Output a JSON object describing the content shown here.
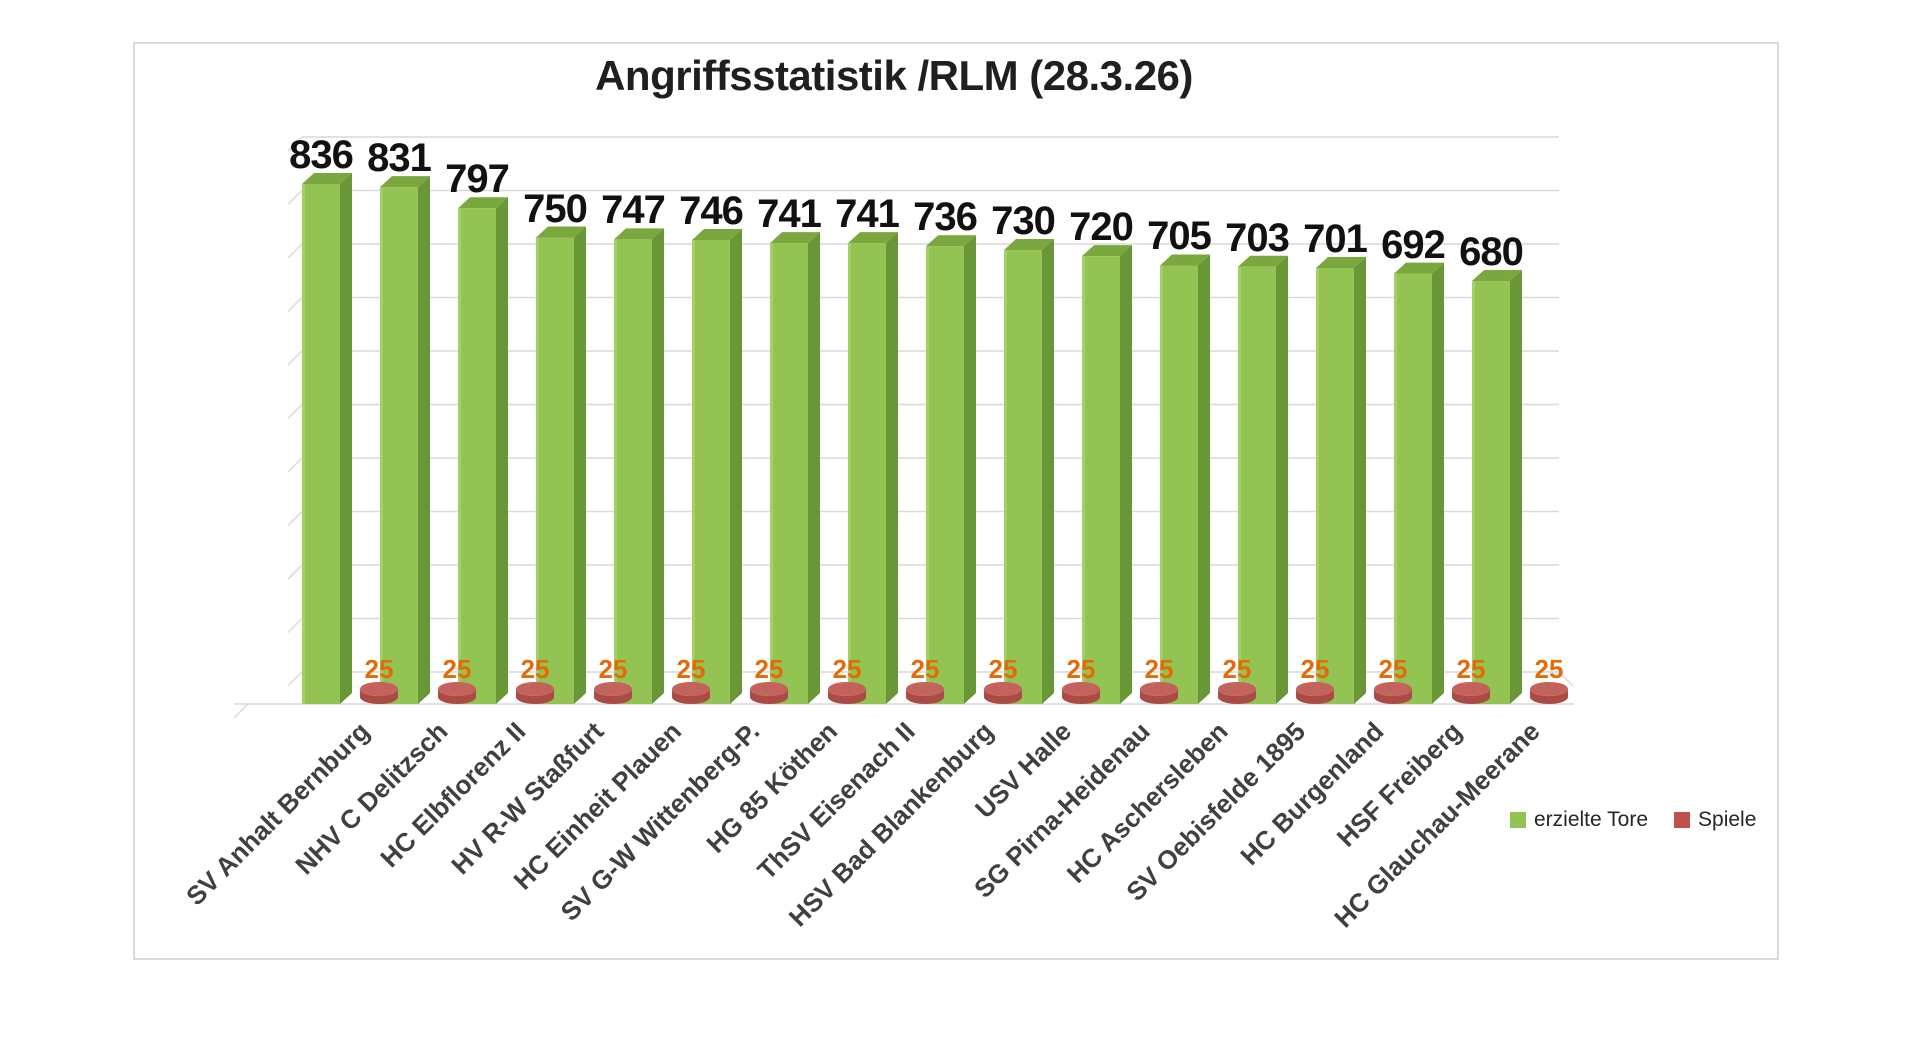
{
  "title": "Angriffsstatistik /RLM (28.3.26)",
  "legend": {
    "items": [
      {
        "label": "erzielte Tore",
        "color": "#92c353"
      },
      {
        "label": "Spiele",
        "color": "#c0504d"
      }
    ]
  },
  "chart_data": {
    "type": "bar",
    "style": "3d-clustered-column",
    "title": "Angriffsstatistik /RLM (28.3.26)",
    "categories": [
      "SV Anhalt Bernburg",
      "NHV C Delitzsch",
      "HC Elbflorenz II",
      "HV R-W Staßfurt",
      "HC Einheit Plauen",
      "SV G-W Wittenberg-P.",
      "HG 85 Köthen",
      "ThSV Eisenach II",
      "HSV Bad Blankenburg",
      "USV Halle",
      "SG Pirna-Heidenau",
      "HC Aschersleben",
      "SV Oebisfelde 1895",
      "HC Burgenland",
      "HSF Freiberg",
      "HC Glauchau-Meerane"
    ],
    "series": [
      {
        "name": "erzielte Tore",
        "color": "#92c353",
        "values": [
          836,
          831,
          797,
          750,
          747,
          746,
          741,
          741,
          736,
          730,
          720,
          705,
          703,
          701,
          692,
          680
        ]
      },
      {
        "name": "Spiele",
        "color": "#c0504d",
        "values": [
          25,
          25,
          25,
          25,
          25,
          25,
          25,
          25,
          25,
          25,
          25,
          25,
          25,
          25,
          25,
          25
        ]
      }
    ],
    "xlabel": "",
    "ylabel": "",
    "ylim": [
      0,
      900
    ],
    "grid": true,
    "legend_position": "bottom-right",
    "colors": {
      "bar_front": "#92c353",
      "bar_top": "#7aa83e",
      "bar_side": "#699637",
      "cylinder_body": "#aa4b46",
      "cylinder_top": "#c4625c",
      "gridline": "#d9d9d9",
      "value_label": "#111111",
      "spiele_label": "#e36c09",
      "category_label": "#404040"
    }
  }
}
